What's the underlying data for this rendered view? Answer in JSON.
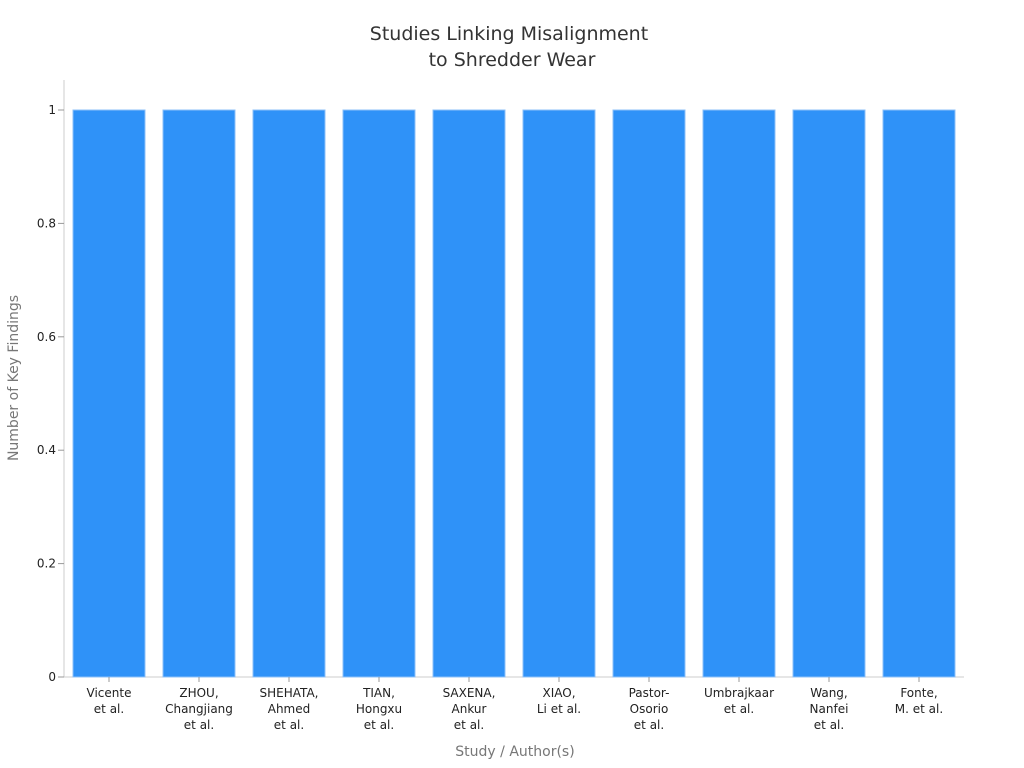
{
  "chart_data": {
    "type": "bar",
    "title": [
      "Studies Linking Misalignment",
      "to Shredder Wear"
    ],
    "xlabel": "Study / Author(s)",
    "ylabel": "Number of Key Findings",
    "ylim": [
      0,
      1.05
    ],
    "yticks": [
      "0",
      "0.2",
      "0.4",
      "0.6",
      "0.8",
      "1"
    ],
    "categories": [
      [
        "Vicente",
        "et al."
      ],
      [
        "ZHOU,",
        "Changjiang",
        "et al."
      ],
      [
        "SHEHATA,",
        "Ahmed",
        "et al."
      ],
      [
        "TIAN,",
        "Hongxu",
        "et al."
      ],
      [
        "SAXENA,",
        "Ankur",
        "et al."
      ],
      [
        "XIAO,",
        "Li et al."
      ],
      [
        "Pastor-",
        "Osorio",
        "et al."
      ],
      [
        "Umbrajkaar",
        "et al."
      ],
      [
        "Wang,",
        "Nanfei",
        "et al."
      ],
      [
        "Fonte,",
        "M. et al."
      ]
    ],
    "values": [
      1,
      1,
      1,
      1,
      1,
      1,
      1,
      1,
      1,
      1
    ],
    "bar_color": "#2f92f8",
    "grid": false,
    "legend": "none"
  }
}
